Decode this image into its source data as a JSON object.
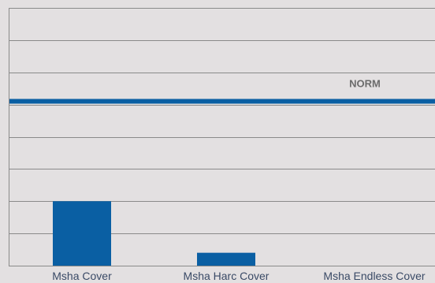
{
  "chart_data": {
    "type": "bar",
    "title": "",
    "xlabel": "",
    "ylabel": "",
    "categories": [
      "Msha Cover",
      "Msha Harc Cover",
      "Msha Endless Cover"
    ],
    "values": [
      2,
      0.4,
      0
    ],
    "ylim": [
      0,
      8
    ],
    "grid": true,
    "reference_line": {
      "label": "NORM",
      "value": 5.1
    },
    "colors": {
      "bar": "#0a5fa3",
      "reference_line": "#0a5fa3",
      "grid": "#8a8a8a",
      "background": "#e3e0e1"
    }
  }
}
